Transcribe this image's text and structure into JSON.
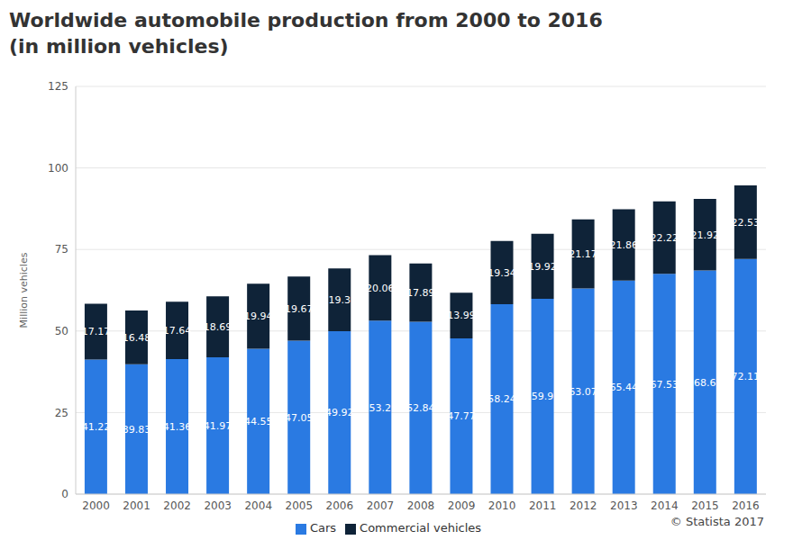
{
  "chart_data": {
    "type": "bar",
    "title": "Worldwide automobile production from 2000 to 2016\n (in million vehicles)",
    "y_label": "Million vehicles",
    "annotation": "© Statista 2017",
    "categories": [
      "2000",
      "2001",
      "2002",
      "2003",
      "2004",
      "2005",
      "2006",
      "2007",
      "2008",
      "2009",
      "2010",
      "2011",
      "2012",
      "2013",
      "2014",
      "2015",
      "2016"
    ],
    "series": [
      {
        "name": "Cars",
        "color": "#2a7ae2",
        "values": [
          41.22,
          39.83,
          41.36,
          41.97,
          44.55,
          47.05,
          49.92,
          53.2,
          52.84,
          47.77,
          58.24,
          59.9,
          63.07,
          65.44,
          67.53,
          68.6,
          72.11
        ]
      },
      {
        "name": "Commercial vehicles",
        "color": "#0f2338",
        "values": [
          17.17,
          16.48,
          17.64,
          18.69,
          19.94,
          19.67,
          19.3,
          20.06,
          17.89,
          13.99,
          19.34,
          19.92,
          21.17,
          21.86,
          22.22,
          21.92,
          22.53
        ]
      }
    ],
    "ylim": [
      0,
      125
    ],
    "yticks": [
      0,
      25,
      50,
      75,
      100,
      125
    ],
    "grid": true,
    "stacked": true,
    "data_labels": true,
    "legend": "bottom"
  }
}
